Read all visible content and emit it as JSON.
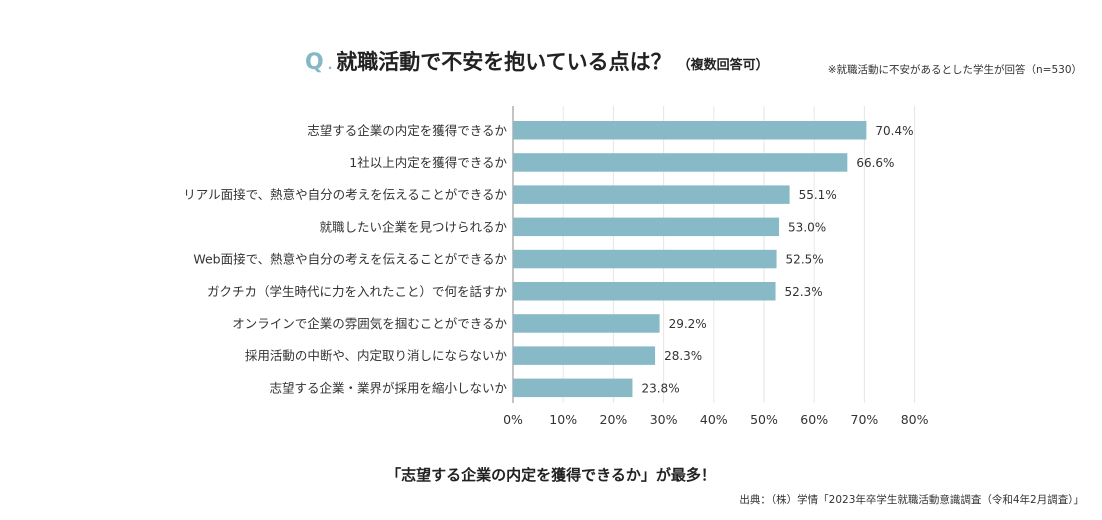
{
  "header": {
    "q_mark": "Q",
    "q_dot": ".",
    "title": "就職活動で不安を抱いている点は？",
    "subtitle": "（複数回答可）",
    "note": "※就職活動に不安があるとした学生が回答（n=530）"
  },
  "footer": {
    "conclusion": "「志望する企業の内定を獲得できるか」が最多！",
    "source": "出典：（株）学情「2023年卒学生就職活動意識調査（令和4年2月調査）」"
  },
  "chart_data": {
    "type": "bar",
    "orientation": "horizontal",
    "categories": [
      "志望する企業の内定を獲得できるか",
      "1社以上内定を獲得できるか",
      "リアル面接で、熱意や自分の考えを伝えることができるか",
      "就職したい企業を見つけられるか",
      "Web面接で、熱意や自分の考えを伝えることができるか",
      "ガクチカ（学生時代に力を入れたこと）で何を話すか",
      "オンラインで企業の雰囲気を掴むことができるか",
      "採用活動の中断や、内定取り消しにならないか",
      "志望する企業・業界が採用を縮小しないか"
    ],
    "values": [
      70.4,
      66.6,
      55.1,
      53.0,
      52.5,
      52.3,
      29.2,
      28.3,
      23.8
    ],
    "value_labels": [
      "70.4%",
      "66.6%",
      "55.1%",
      "53.0%",
      "52.5%",
      "52.3%",
      "29.2%",
      "28.3%",
      "23.8%"
    ],
    "xlim": [
      0,
      80
    ],
    "x_ticks": [
      "0%",
      "10%",
      "20%",
      "30%",
      "40%",
      "50%",
      "60%",
      "70%",
      "80%"
    ],
    "grid": true,
    "bar_color": "#88b9c6"
  }
}
